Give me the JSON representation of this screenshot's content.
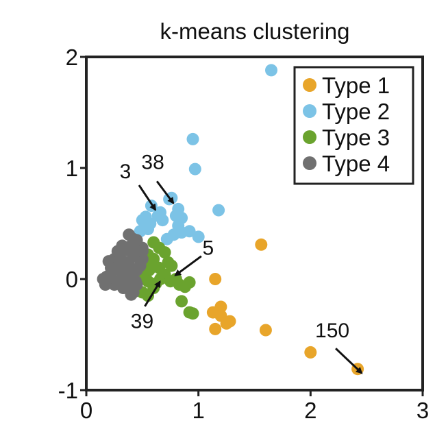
{
  "chart_data": {
    "type": "scatter",
    "title": "k-means clustering",
    "xlabel": "",
    "ylabel": "",
    "xlim": [
      0,
      3
    ],
    "ylim": [
      -1,
      2
    ],
    "xticks": [
      "0",
      "1",
      "2",
      "3"
    ],
    "yticks": [
      "-1",
      "0",
      "1",
      "2"
    ],
    "grid": false,
    "legend_position": "top-right",
    "series": [
      {
        "name": "Type 1",
        "color": "#e8a52a",
        "points": [
          [
            1.13,
            -0.3
          ],
          [
            1.2,
            -0.25
          ],
          [
            1.15,
            -0.45
          ],
          [
            1.2,
            -0.33
          ],
          [
            1.25,
            -0.4
          ],
          [
            1.28,
            -0.38
          ],
          [
            1.15,
            0.0
          ],
          [
            1.56,
            0.31
          ],
          [
            1.6,
            -0.46
          ],
          [
            2.0,
            -0.66
          ],
          [
            2.42,
            -0.81
          ]
        ]
      },
      {
        "name": "Type 2",
        "color": "#7cc3e6",
        "points": [
          [
            1.65,
            1.88
          ],
          [
            0.95,
            1.26
          ],
          [
            0.97,
            0.99
          ],
          [
            0.58,
            0.66
          ],
          [
            0.74,
            0.72
          ],
          [
            0.76,
            0.73
          ],
          [
            0.82,
            0.63
          ],
          [
            0.5,
            0.53
          ],
          [
            0.53,
            0.56
          ],
          [
            0.57,
            0.5
          ],
          [
            0.64,
            0.57
          ],
          [
            0.68,
            0.53
          ],
          [
            0.66,
            0.6
          ],
          [
            0.8,
            0.57
          ],
          [
            0.85,
            0.55
          ],
          [
            0.82,
            0.48
          ],
          [
            1.18,
            0.62
          ],
          [
            0.72,
            0.36
          ],
          [
            0.78,
            0.4
          ],
          [
            0.85,
            0.42
          ],
          [
            0.92,
            0.43
          ],
          [
            1.0,
            0.38
          ],
          [
            0.55,
            0.45
          ],
          [
            0.48,
            0.43
          ]
        ]
      },
      {
        "name": "Type 3",
        "color": "#6aa32e",
        "points": [
          [
            0.6,
            0.33
          ],
          [
            0.65,
            0.28
          ],
          [
            0.55,
            0.22
          ],
          [
            0.6,
            0.18
          ],
          [
            0.58,
            0.14
          ],
          [
            0.7,
            0.24
          ],
          [
            0.73,
            0.15
          ],
          [
            0.65,
            0.1
          ],
          [
            0.56,
            0.08
          ],
          [
            0.5,
            0.02
          ],
          [
            0.55,
            -0.02
          ],
          [
            0.62,
            -0.04
          ],
          [
            0.5,
            -0.12
          ],
          [
            0.55,
            -0.15
          ],
          [
            0.6,
            -0.08
          ],
          [
            0.66,
            0.0
          ],
          [
            0.7,
            0.04
          ],
          [
            0.75,
            -0.02
          ],
          [
            0.8,
            0.0
          ],
          [
            0.83,
            -0.05
          ],
          [
            0.76,
            0.12
          ],
          [
            0.88,
            -0.07
          ],
          [
            0.92,
            -0.03
          ],
          [
            0.85,
            -0.2
          ],
          [
            0.95,
            -0.31
          ],
          [
            0.92,
            -0.3
          ]
        ]
      },
      {
        "name": "Type 4",
        "color": "#707070",
        "points": [
          [
            0.2,
            0.16
          ],
          [
            0.25,
            0.18
          ],
          [
            0.3,
            0.22
          ],
          [
            0.35,
            0.26
          ],
          [
            0.4,
            0.3
          ],
          [
            0.45,
            0.35
          ],
          [
            0.5,
            0.28
          ],
          [
            0.47,
            0.22
          ],
          [
            0.42,
            0.2
          ],
          [
            0.38,
            0.12
          ],
          [
            0.33,
            0.1
          ],
          [
            0.28,
            0.08
          ],
          [
            0.22,
            0.05
          ],
          [
            0.18,
            0.02
          ],
          [
            0.15,
            0.0
          ],
          [
            0.2,
            -0.03
          ],
          [
            0.25,
            -0.05
          ],
          [
            0.3,
            -0.02
          ],
          [
            0.35,
            0.02
          ],
          [
            0.4,
            0.04
          ],
          [
            0.45,
            0.08
          ],
          [
            0.48,
            0.12
          ],
          [
            0.5,
            0.18
          ],
          [
            0.44,
            -0.02
          ],
          [
            0.38,
            -0.06
          ],
          [
            0.33,
            -0.08
          ],
          [
            0.28,
            -0.04
          ],
          [
            0.4,
            -0.1
          ],
          [
            0.45,
            -0.05
          ],
          [
            0.42,
            -0.12
          ],
          [
            0.4,
            -0.14
          ],
          [
            0.36,
            0.15
          ],
          [
            0.3,
            0.16
          ],
          [
            0.38,
            0.4
          ],
          [
            0.42,
            0.36
          ],
          [
            0.32,
            0.3
          ],
          [
            0.28,
            0.25
          ],
          [
            0.46,
            0.3
          ],
          [
            0.5,
            0.25
          ],
          [
            0.22,
            0.1
          ],
          [
            0.17,
            -0.05
          ]
        ]
      }
    ],
    "annotations": [
      {
        "text": "3",
        "target": [
          0.58,
          0.66
        ]
      },
      {
        "text": "38",
        "target": [
          0.74,
          0.72
        ]
      },
      {
        "text": "5",
        "target": [
          0.83,
          0.07
        ]
      },
      {
        "text": "39",
        "target": [
          0.62,
          -0.06
        ]
      },
      {
        "text": "150",
        "target": [
          2.42,
          -0.81
        ]
      }
    ]
  }
}
